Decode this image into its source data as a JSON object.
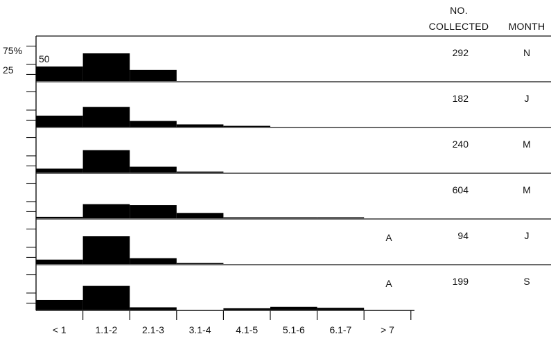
{
  "chart_data": {
    "type": "bar",
    "subtype": "stacked-histograms",
    "categories": [
      "< 1",
      "1.1-2",
      "2.1-3",
      "3.1-4",
      "4.1-5",
      "5.1-6",
      "6.1-7",
      "> 7"
    ],
    "y_axis_labels": [
      "75%",
      "50",
      "25"
    ],
    "ylim": [
      0,
      100
    ],
    "header": {
      "count": "NO.",
      "count_line2": "COLLECTED",
      "month": "MONTH"
    },
    "series": [
      {
        "month": "N",
        "collected": "292",
        "marker": "",
        "values": [
          30,
          57,
          23,
          0,
          0,
          0,
          0,
          0
        ]
      },
      {
        "month": "J",
        "collected": "182",
        "marker": "",
        "values": [
          23,
          41,
          12,
          5,
          1,
          0,
          0,
          0
        ]
      },
      {
        "month": "M",
        "collected": "240",
        "marker": "",
        "values": [
          8,
          46,
          12,
          1,
          0,
          0,
          0,
          0
        ]
      },
      {
        "month": "M",
        "collected": "604",
        "marker": "",
        "values": [
          3,
          29,
          27,
          11,
          1,
          1,
          1,
          0
        ]
      },
      {
        "month": "J",
        "collected": "94",
        "marker": "A",
        "values": [
          9,
          57,
          12,
          1,
          0,
          0,
          0,
          0
        ]
      },
      {
        "month": "S",
        "collected": "199",
        "marker": "A",
        "values": [
          20,
          49,
          5,
          0,
          3,
          6,
          4,
          0
        ]
      }
    ]
  }
}
